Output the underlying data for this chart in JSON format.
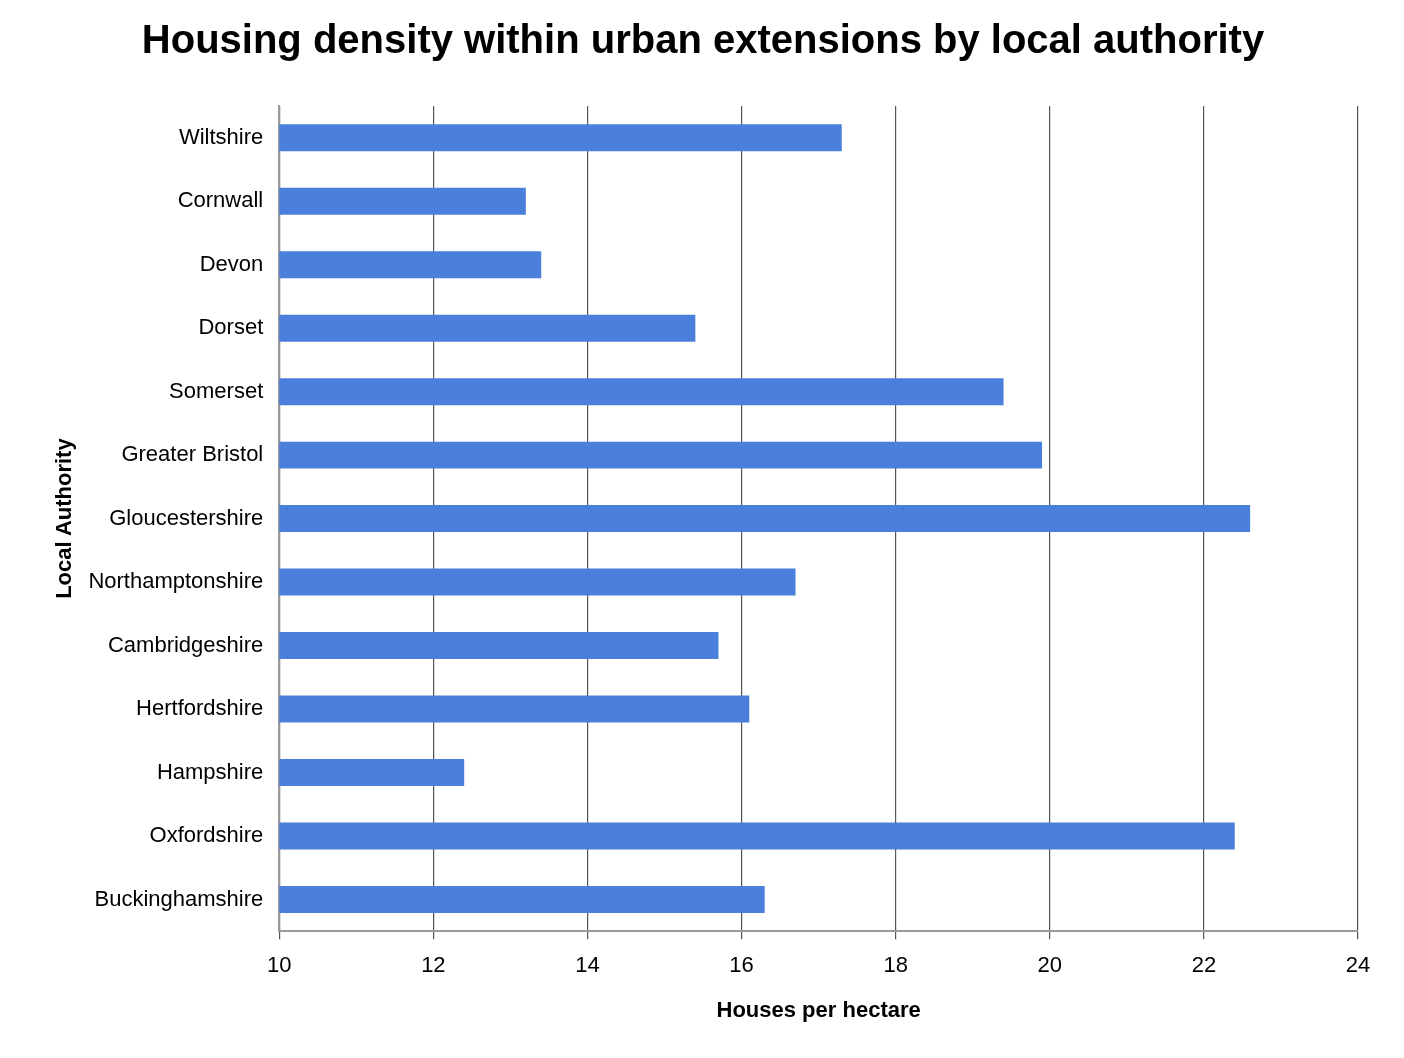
{
  "chart_data": {
    "type": "bar",
    "orientation": "horizontal",
    "title": "Housing density within urban extensions by local authority",
    "xlabel": "Houses per hectare",
    "ylabel": "Local Authority",
    "categories": [
      "Wiltshire",
      "Cornwall",
      "Devon",
      "Dorset",
      "Somerset",
      "Greater Bristol",
      "Gloucestershire",
      "Northamptonshire",
      "Cambridgeshire",
      "Hertfordshire",
      "Hampshire",
      "Oxfordshire",
      "Buckinghamshire"
    ],
    "values": [
      17.3,
      13.2,
      13.4,
      15.4,
      19.4,
      19.9,
      22.6,
      16.7,
      15.7,
      16.1,
      12.4,
      22.4,
      16.3
    ],
    "color": "#4a7fdc",
    "xlim": [
      10,
      24
    ],
    "xticks": [
      10,
      12,
      14,
      16,
      18,
      20,
      22,
      24
    ],
    "grid": "x"
  }
}
